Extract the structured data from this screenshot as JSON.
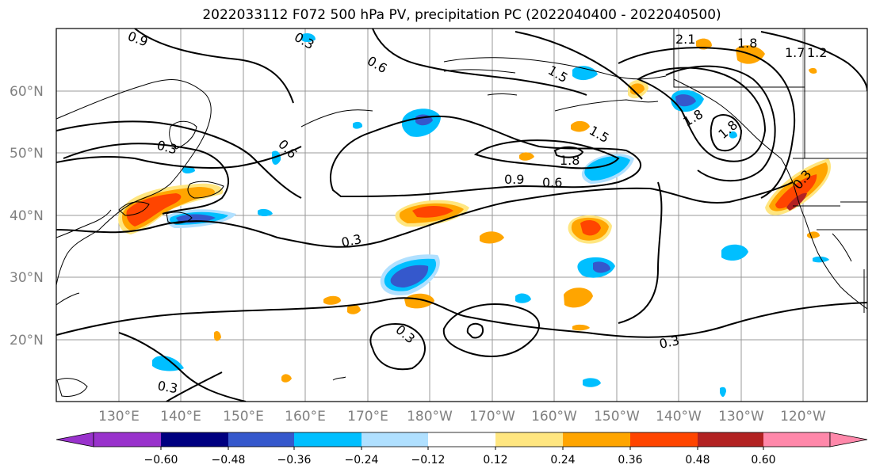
{
  "title": "2022033112 F072 500 hPa PV, precipitation PC (2022040400 - 2022040500)",
  "latitude_labels": [
    "60°N",
    "50°N",
    "40°N",
    "30°N",
    "20°N"
  ],
  "longitude_labels": [
    "130°E",
    "140°E",
    "150°E",
    "160°E",
    "170°E",
    "180°W",
    "170°W",
    "160°W",
    "150°W",
    "140°W",
    "130°W",
    "120°W"
  ],
  "contour_labels": [
    "0.9",
    "0.3",
    "0.6",
    "1.5",
    "1.8",
    "2.1",
    "1.7",
    "0.3",
    "0.6",
    "1.5",
    "1.8",
    "1.8",
    "0.9",
    "0.6",
    "0.3",
    "0.3",
    "0.3",
    "0.3",
    "1.8",
    "0.3",
    "1.2"
  ],
  "colorbar": {
    "colors": [
      "#9932CC",
      "#000080",
      "#3558CC",
      "#00BFFF",
      "#B0E0FF",
      "#FFFFFF",
      "#FFE680",
      "#FFA500",
      "#FF4500",
      "#B22222",
      "#FF88AA"
    ],
    "tick_labels": [
      "-0.60",
      "-0.48",
      "-0.36",
      "-0.24",
      "-0.12",
      "0.12",
      "0.24",
      "0.36",
      "0.48",
      "0.60"
    ]
  }
}
